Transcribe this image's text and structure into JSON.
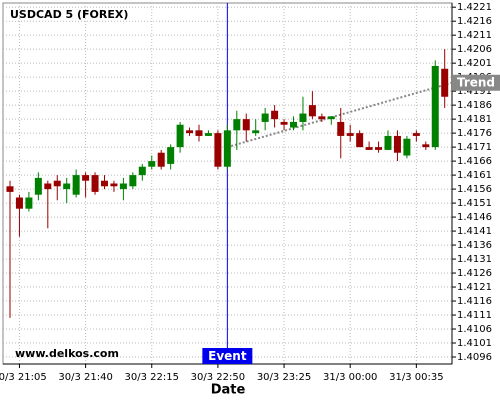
{
  "chart_data": {
    "type": "candlestick",
    "title": "USDCAD 5 (FOREX)",
    "x_label": "Date",
    "watermark": "www.delkos.com",
    "categories": [
      null,
      "30/3 21:05",
      null,
      null,
      null,
      null,
      null,
      null,
      "30/3 21:40",
      null,
      null,
      null,
      null,
      null,
      null,
      "30/3 22:15",
      null,
      null,
      null,
      null,
      null,
      null,
      "30/3 22:50",
      null,
      null,
      null,
      null,
      null,
      null,
      "30/3 23:25",
      null,
      null,
      null,
      null,
      null,
      null,
      "31/3 00:00",
      null,
      null,
      null,
      null,
      null,
      null,
      "31/3 00:35",
      null,
      null,
      null
    ],
    "series": [
      {
        "up_color": "#008000",
        "down_color": "#990000",
        "open": [
          1.4157,
          1.4153,
          1.4149,
          1.4154,
          1.4158,
          1.4159,
          1.4156,
          1.4154,
          1.4161,
          1.4161,
          1.4159,
          1.4158,
          1.4156,
          1.4157,
          1.4161,
          1.4164,
          1.4169,
          1.4165,
          1.4171,
          1.4177,
          1.4177,
          1.4175,
          1.4176,
          1.4164,
          1.4177,
          1.4181,
          1.4176,
          1.418,
          1.4184,
          1.418,
          1.4178,
          1.418,
          1.4186,
          1.4182,
          1.4181,
          1.418,
          1.4176,
          1.4176,
          1.4171,
          1.4171,
          1.417,
          1.4175,
          1.4168,
          1.4176,
          1.4172,
          1.4171,
          1.4199
        ],
        "high": [
          1.4159,
          1.4154,
          1.4155,
          1.4162,
          1.4159,
          1.4161,
          1.416,
          1.4163,
          1.4162,
          1.4162,
          1.4161,
          1.4159,
          1.416,
          1.4162,
          1.4165,
          1.4168,
          1.417,
          1.4172,
          1.418,
          1.4178,
          1.4179,
          1.4177,
          1.4177,
          1.4179,
          1.4184,
          1.4183,
          1.4181,
          1.4185,
          1.4186,
          1.4181,
          1.4182,
          1.4189,
          1.4191,
          1.4183,
          1.4182,
          1.4185,
          1.4179,
          1.4177,
          1.4173,
          1.4173,
          1.4177,
          1.4177,
          1.4175,
          1.4177,
          1.4173,
          1.4202,
          1.4206
        ],
        "low": [
          1.411,
          1.4139,
          1.4148,
          1.4152,
          1.4142,
          1.4152,
          1.4151,
          1.4153,
          1.4153,
          1.4154,
          1.4156,
          1.4155,
          1.4152,
          1.4156,
          1.4159,
          1.4163,
          1.4163,
          1.4163,
          1.4169,
          1.4175,
          1.4173,
          1.4175,
          1.4163,
          1.4163,
          1.417,
          1.4173,
          1.4175,
          1.4177,
          1.4178,
          1.4177,
          1.4177,
          1.4177,
          1.4181,
          1.418,
          1.4179,
          1.4167,
          1.4173,
          1.4171,
          1.417,
          1.4169,
          1.417,
          1.4166,
          1.4167,
          1.4173,
          1.417,
          1.417,
          1.4185
        ],
        "close": [
          1.4155,
          1.4149,
          1.4153,
          1.416,
          1.4156,
          1.4157,
          1.4158,
          1.4161,
          1.4159,
          1.4155,
          1.4157,
          1.4157,
          1.4158,
          1.4161,
          1.4164,
          1.4166,
          1.4164,
          1.4171,
          1.4179,
          1.4176,
          1.4175,
          1.4176,
          1.4164,
          1.4177,
          1.4181,
          1.4177,
          1.4177,
          1.4183,
          1.4181,
          1.4179,
          1.418,
          1.4183,
          1.4182,
          1.4181,
          1.4182,
          1.4175,
          1.4175,
          1.4171,
          1.417,
          1.417,
          1.4175,
          1.4169,
          1.4174,
          1.4175,
          1.4171,
          1.42,
          1.4189
        ]
      }
    ],
    "ylim": [
      1.40935,
      1.42225
    ],
    "yticks": [
      1.4096,
      1.4101,
      1.4106,
      1.4111,
      1.4116,
      1.4121,
      1.4126,
      1.4131,
      1.4136,
      1.4141,
      1.4146,
      1.4151,
      1.4156,
      1.4161,
      1.4166,
      1.4171,
      1.4176,
      1.4181,
      1.4186,
      1.4191,
      1.4196,
      1.4201,
      1.4206,
      1.4211,
      1.4216,
      1.4221
    ],
    "grid": true,
    "event": {
      "label": "Event",
      "index": 23,
      "color": "#0000ee"
    },
    "trend": {
      "label": "Trend",
      "start": [
        23,
        1.4171
      ],
      "end": [
        47,
        1.4194
      ],
      "color": "#888888"
    }
  }
}
